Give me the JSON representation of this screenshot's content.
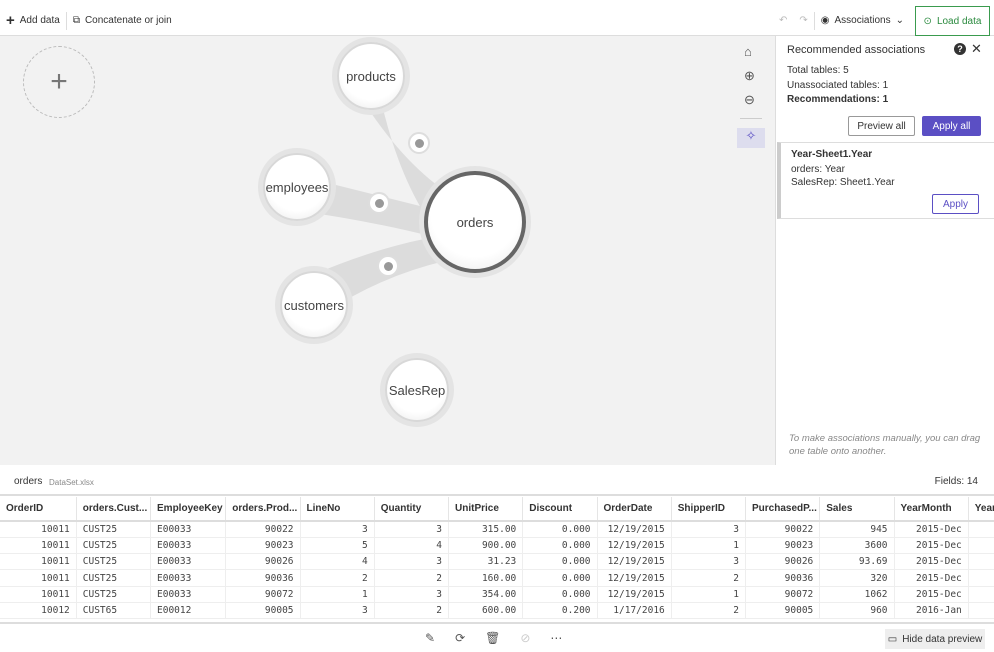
{
  "toolbar": {
    "add_data": "Add data",
    "concat": "Concatenate or join",
    "associations": "Associations",
    "load_data": "Load data"
  },
  "canvas": {
    "tables": [
      "products",
      "employees",
      "orders",
      "customers",
      "SalesRep"
    ]
  },
  "panel": {
    "title": "Recommended associations",
    "total": "Total tables: 5",
    "unassociated": "Unassociated tables: 1",
    "recommendations": "Recommendations: 1",
    "preview_all": "Preview all",
    "apply_all": "Apply all",
    "rec": {
      "title": "Year-Sheet1.Year",
      "line1": "orders: Year",
      "line2": "SalesRep: Sheet1.Year",
      "apply": "Apply"
    },
    "hint": "To make associations manually, you can drag one table onto another."
  },
  "preview": {
    "table": "orders",
    "source": "DataSet.xlsx",
    "fields": "Fields: 14",
    "columns": [
      "OrderID",
      "orders.Cust...",
      "EmployeeKey",
      "orders.Prod...",
      "LineNo",
      "Quantity",
      "UnitPrice",
      "Discount",
      "OrderDate",
      "ShipperID",
      "PurchasedP...",
      "Sales",
      "YearMonth",
      "Year"
    ],
    "rows": [
      [
        "10011",
        "CUST25",
        "E00033",
        "90022",
        "3",
        "3",
        "315.00",
        "0.000",
        "12/19/2015",
        "3",
        "90022",
        "945",
        "2015-Dec",
        ""
      ],
      [
        "10011",
        "CUST25",
        "E00033",
        "90023",
        "5",
        "4",
        "900.00",
        "0.000",
        "12/19/2015",
        "1",
        "90023",
        "3600",
        "2015-Dec",
        ""
      ],
      [
        "10011",
        "CUST25",
        "E00033",
        "90026",
        "4",
        "3",
        "31.23",
        "0.000",
        "12/19/2015",
        "3",
        "90026",
        "93.69",
        "2015-Dec",
        ""
      ],
      [
        "10011",
        "CUST25",
        "E00033",
        "90036",
        "2",
        "2",
        "160.00",
        "0.000",
        "12/19/2015",
        "2",
        "90036",
        "320",
        "2015-Dec",
        ""
      ],
      [
        "10011",
        "CUST25",
        "E00033",
        "90072",
        "1",
        "3",
        "354.00",
        "0.000",
        "12/19/2015",
        "1",
        "90072",
        "1062",
        "2015-Dec",
        ""
      ],
      [
        "10012",
        "CUST65",
        "E00012",
        "90005",
        "3",
        "2",
        "600.00",
        "0.200",
        "1/17/2016",
        "2",
        "90005",
        "960",
        "2016-Jan",
        ""
      ]
    ]
  },
  "bottom": {
    "hide_preview": "Hide data preview"
  },
  "colors": {
    "accent": "#5b4fc4",
    "load": "#3a9b4e"
  }
}
